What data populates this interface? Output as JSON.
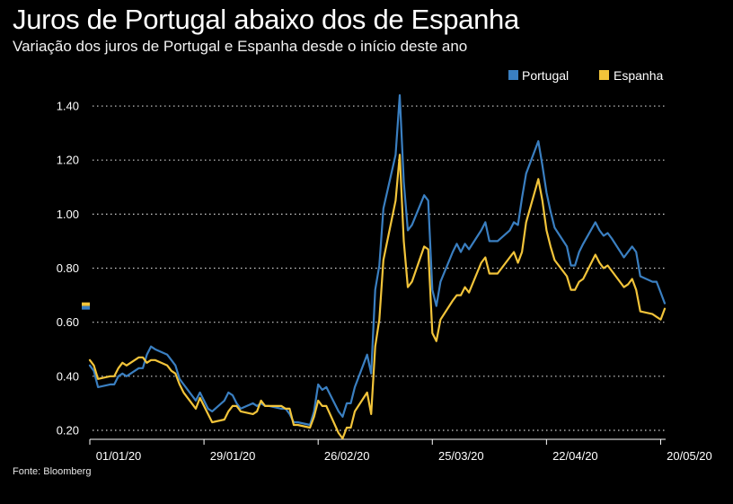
{
  "title": "Juros de Portugal abaixo dos de Espanha",
  "subtitle": "Variação dos juros de Portugal e Espanha desde o início deste ano",
  "source": "Fonte: Bloomberg",
  "colors": {
    "portugal": "#3a7fc1",
    "espanha": "#f2c43a",
    "grid": "#cfcfcf",
    "background": "#000000"
  },
  "chart_data": {
    "type": "line",
    "title": "Juros de Portugal abaixo dos de Espanha",
    "subtitle": "Variação dos juros de Portugal e Espanha desde o início deste ano",
    "xlabel": "",
    "ylabel": "",
    "ylim": [
      0.18,
      1.45
    ],
    "yticks": [
      0.2,
      0.4,
      0.6,
      0.8,
      1.0,
      1.2,
      1.4
    ],
    "ytick_labels": [
      "0.20",
      "0.40",
      "0.60",
      "0.80",
      "1.00",
      "1.20",
      "1.40"
    ],
    "xlim": [
      "2020-01-01",
      "2020-05-21"
    ],
    "xticks": [
      "2020-01-01",
      "2020-01-29",
      "2020-02-26",
      "2020-03-25",
      "2020-04-22",
      "2020-05-20"
    ],
    "xtick_labels": [
      "01/01/20",
      "29/01/20",
      "26/02/20",
      "25/03/20",
      "22/04/20",
      "20/05/20"
    ],
    "grid": "horizontal dotted",
    "legend": {
      "placement": "top-right",
      "entries": [
        "Portugal",
        "Espanha"
      ]
    },
    "x": [
      "2020-01-01",
      "2020-01-02",
      "2020-01-03",
      "2020-01-06",
      "2020-01-07",
      "2020-01-08",
      "2020-01-09",
      "2020-01-10",
      "2020-01-13",
      "2020-01-14",
      "2020-01-15",
      "2020-01-16",
      "2020-01-17",
      "2020-01-20",
      "2020-01-21",
      "2020-01-22",
      "2020-01-23",
      "2020-01-24",
      "2020-01-27",
      "2020-01-28",
      "2020-01-29",
      "2020-01-30",
      "2020-01-31",
      "2020-02-03",
      "2020-02-04",
      "2020-02-05",
      "2020-02-06",
      "2020-02-07",
      "2020-02-10",
      "2020-02-11",
      "2020-02-12",
      "2020-02-13",
      "2020-02-14",
      "2020-02-17",
      "2020-02-18",
      "2020-02-19",
      "2020-02-20",
      "2020-02-21",
      "2020-02-24",
      "2020-02-25",
      "2020-02-26",
      "2020-02-27",
      "2020-02-28",
      "2020-03-02",
      "2020-03-03",
      "2020-03-04",
      "2020-03-05",
      "2020-03-06",
      "2020-03-09",
      "2020-03-10",
      "2020-03-11",
      "2020-03-12",
      "2020-03-13",
      "2020-03-16",
      "2020-03-17",
      "2020-03-18",
      "2020-03-19",
      "2020-03-20",
      "2020-03-23",
      "2020-03-24",
      "2020-03-25",
      "2020-03-26",
      "2020-03-27",
      "2020-03-30",
      "2020-03-31",
      "2020-04-01",
      "2020-04-02",
      "2020-04-03",
      "2020-04-06",
      "2020-04-07",
      "2020-04-08",
      "2020-04-09",
      "2020-04-10",
      "2020-04-13",
      "2020-04-14",
      "2020-04-15",
      "2020-04-16",
      "2020-04-17",
      "2020-04-20",
      "2020-04-21",
      "2020-04-22",
      "2020-04-23",
      "2020-04-24",
      "2020-04-27",
      "2020-04-28",
      "2020-04-29",
      "2020-04-30",
      "2020-05-01",
      "2020-05-04",
      "2020-05-05",
      "2020-05-06",
      "2020-05-07",
      "2020-05-08",
      "2020-05-11",
      "2020-05-12",
      "2020-05-13",
      "2020-05-14",
      "2020-05-15",
      "2020-05-18",
      "2020-05-19",
      "2020-05-20",
      "2020-05-21"
    ],
    "series": [
      {
        "name": "Portugal",
        "color": "#3a7fc1",
        "values": [
          0.44,
          0.42,
          0.36,
          0.37,
          0.37,
          0.4,
          0.41,
          0.4,
          0.43,
          0.43,
          0.48,
          0.51,
          0.5,
          0.48,
          0.46,
          0.44,
          0.39,
          0.37,
          0.31,
          0.34,
          0.31,
          0.28,
          0.27,
          0.31,
          0.34,
          0.33,
          0.3,
          0.28,
          0.3,
          0.29,
          0.3,
          0.29,
          0.29,
          0.28,
          0.28,
          0.26,
          0.23,
          0.23,
          0.22,
          0.27,
          0.37,
          0.35,
          0.36,
          0.27,
          0.25,
          0.3,
          0.3,
          0.36,
          0.48,
          0.41,
          0.72,
          0.81,
          1.02,
          1.22,
          1.44,
          1.12,
          0.94,
          0.96,
          1.07,
          1.05,
          0.72,
          0.66,
          0.75,
          0.86,
          0.89,
          0.86,
          0.89,
          0.87,
          0.94,
          0.97,
          0.9,
          0.9,
          0.9,
          0.94,
          0.97,
          0.96,
          1.06,
          1.15,
          1.27,
          1.18,
          1.08,
          1.01,
          0.95,
          0.88,
          0.81,
          0.81,
          0.86,
          0.89,
          0.97,
          0.94,
          0.92,
          0.93,
          0.91,
          0.84,
          0.86,
          0.88,
          0.86,
          0.77,
          0.75,
          0.75,
          0.71,
          0.67
        ]
      },
      {
        "name": "Espanha",
        "color": "#f2c43a",
        "values": [
          0.46,
          0.44,
          0.39,
          0.4,
          0.4,
          0.43,
          0.45,
          0.44,
          0.47,
          0.47,
          0.45,
          0.46,
          0.46,
          0.44,
          0.42,
          0.41,
          0.37,
          0.34,
          0.28,
          0.32,
          0.29,
          0.26,
          0.23,
          0.24,
          0.27,
          0.29,
          0.29,
          0.27,
          0.26,
          0.27,
          0.31,
          0.29,
          0.29,
          0.29,
          0.28,
          0.28,
          0.22,
          0.22,
          0.21,
          0.25,
          0.31,
          0.29,
          0.29,
          0.19,
          0.17,
          0.21,
          0.21,
          0.27,
          0.34,
          0.26,
          0.51,
          0.61,
          0.83,
          1.05,
          1.22,
          0.9,
          0.73,
          0.75,
          0.88,
          0.87,
          0.56,
          0.53,
          0.61,
          0.68,
          0.7,
          0.7,
          0.73,
          0.71,
          0.82,
          0.84,
          0.78,
          0.78,
          0.78,
          0.84,
          0.86,
          0.82,
          0.86,
          0.97,
          1.13,
          1.05,
          0.94,
          0.88,
          0.83,
          0.77,
          0.72,
          0.72,
          0.75,
          0.76,
          0.85,
          0.82,
          0.8,
          0.81,
          0.79,
          0.73,
          0.74,
          0.76,
          0.72,
          0.64,
          0.63,
          0.62,
          0.61,
          0.65
        ]
      }
    ]
  }
}
